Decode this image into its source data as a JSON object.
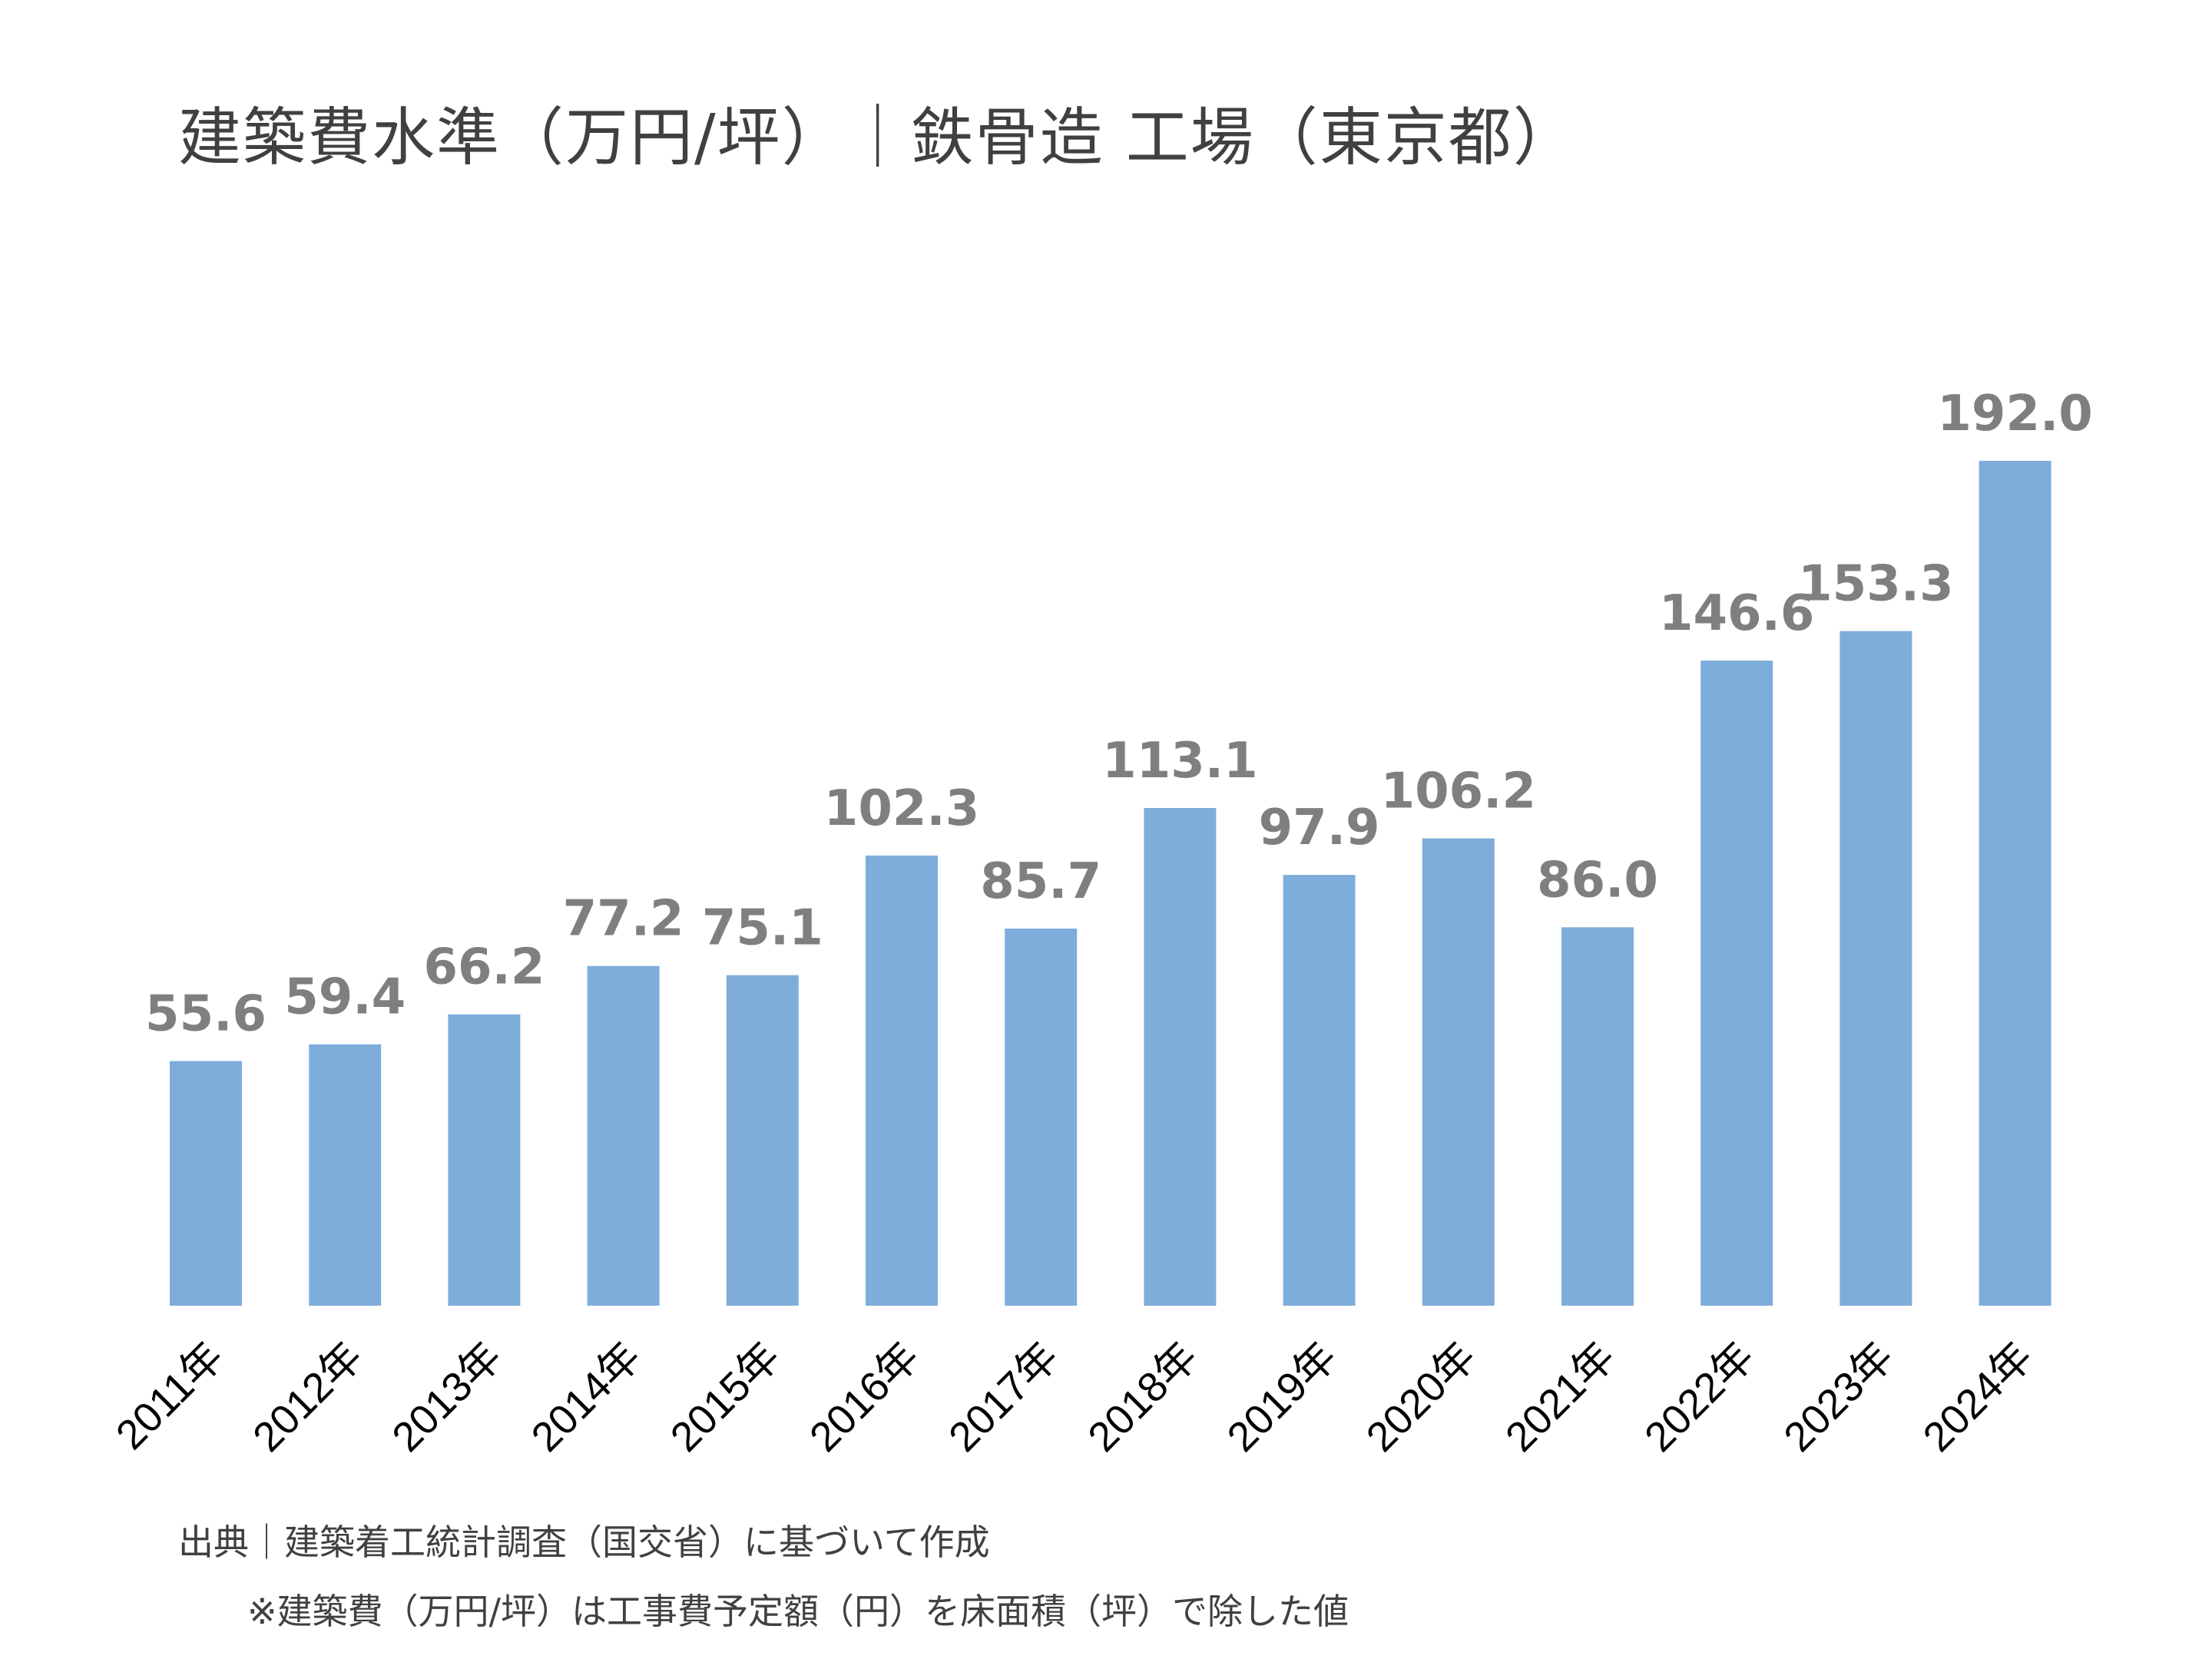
{
  "title": "建築費水準（万円/坪）｜鉄骨造 工場（東京都）",
  "notes": {
    "source": "出典｜建築着工統計調査（国交省）に基づいて作成",
    "definition": "※建築費（万円/坪）は工事費予定額（円）を床面積（坪）で除した値"
  },
  "colors": {
    "bar": "#7EADDB",
    "data_label": "#7F7F7F",
    "title": "#404040"
  },
  "chart_data": {
    "type": "bar",
    "title": "建築費水準（万円/坪）｜鉄骨造 工場（東京都）",
    "xlabel": "",
    "ylabel": "",
    "categories": [
      "2011年",
      "2012年",
      "2013年",
      "2014年",
      "2015年",
      "2016年",
      "2017年",
      "2018年",
      "2019年",
      "2020年",
      "2021年",
      "2022年",
      "2023年",
      "2024年"
    ],
    "values": [
      55.6,
      59.4,
      66.2,
      77.2,
      75.1,
      102.3,
      85.7,
      113.1,
      97.9,
      106.2,
      86.0,
      146.6,
      153.3,
      192.0
    ],
    "value_labels": [
      "55.6",
      "59.4",
      "66.2",
      "77.2",
      "75.1",
      "102.3",
      "85.7",
      "113.1",
      "97.9",
      "106.2",
      "86.0",
      "146.6",
      "153.3",
      "192.0"
    ],
    "ylim": [
      0,
      192.0
    ],
    "grid": false,
    "legend": "none",
    "tick_label_rotation": "diagonal"
  }
}
